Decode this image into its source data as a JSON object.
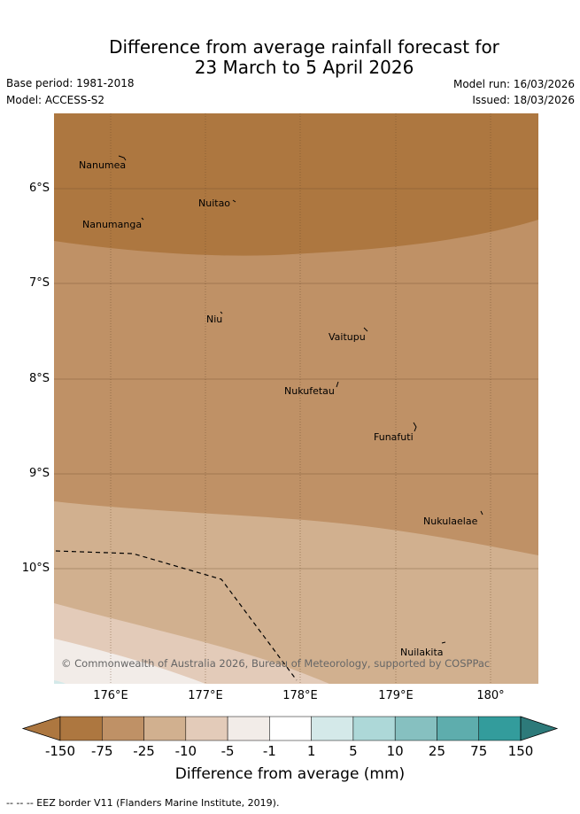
{
  "title": {
    "line1": "Difference from average rainfall forecast for",
    "line2": "23 March to 5 April 2026"
  },
  "meta": {
    "base_period": "Base period: 1981-2018",
    "model": "Model: ACCESS-S2",
    "model_run": "Model run: 16/03/2026",
    "issued": "Issued: 18/03/2026"
  },
  "map": {
    "lat_labels": [
      "6°S",
      "7°S",
      "8°S",
      "9°S",
      "10°S"
    ],
    "lon_labels": [
      "176°E",
      "177°E",
      "178°E",
      "179°E",
      "180°"
    ],
    "places": [
      "Nanumea",
      "Nuitao",
      "Nanumanga",
      "Niu",
      "Vaitupu",
      "Nukufetau",
      "Funafuti",
      "Nukulaelae",
      "Nuilakita"
    ],
    "copyright": "© Commonwealth of Australia 2026, Bureau of Meteorology, supported by COSPPac",
    "anomaly_fills_mm": {
      "north_band": "-150 to -75",
      "central_band": "-75 to -25",
      "south_band": "-25 to -10",
      "southwest_band": "-10 to -5",
      "far_southwest": "-5 to -1"
    }
  },
  "colorbar": {
    "ticks": [
      "-150",
      "-75",
      "-25",
      "-10",
      "-5",
      "-1",
      "1",
      "5",
      "10",
      "25",
      "75",
      "150"
    ],
    "colors": [
      "#ad7740",
      "#bf9166",
      "#d1b08f",
      "#e3cbb9",
      "#f2ece8",
      "#ffffff",
      "#d4e9e9",
      "#add8d8",
      "#86c0c0",
      "#5eadad",
      "#339c9c",
      "#2d7a7a"
    ],
    "label": "Difference from average (mm)"
  },
  "footnote": "--  --  -- EEZ border V11 (Flanders Marine Institute, 2019)."
}
